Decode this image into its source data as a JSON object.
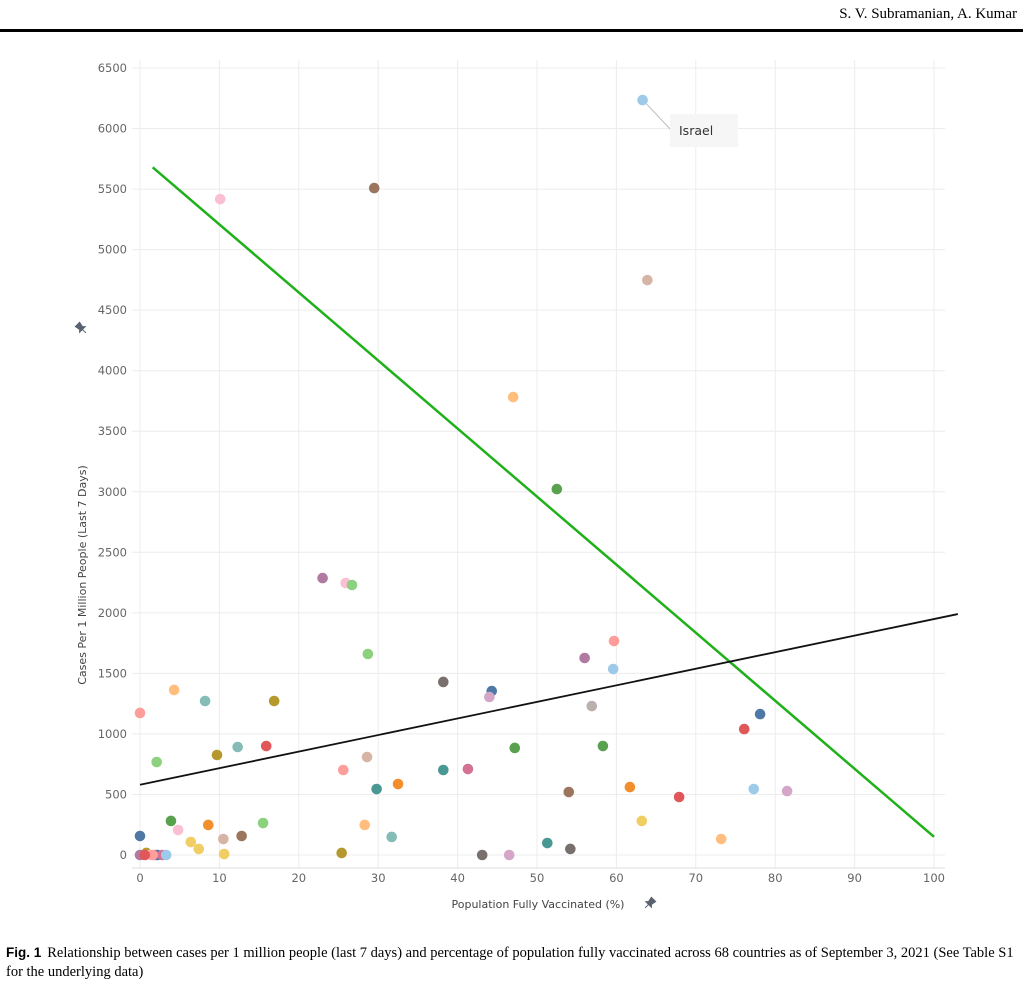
{
  "header": {
    "authors": "S. V. Subramanian, A. Kumar"
  },
  "caption": {
    "label": "Fig. 1",
    "text": "Relationship between cases per 1 million people (last 7 days) and percentage of population fully vaccinated across 68 countries as of September 3, 2021 (See Table S1 for the underlying data)"
  },
  "chart_data": {
    "type": "scatter",
    "title": "",
    "xlabel": "Population Fully Vaccinated (%)",
    "ylabel": "Cases Per 1 Million People (Last 7 Days)",
    "xlim": [
      0,
      100
    ],
    "ylim": [
      0,
      6500
    ],
    "xticks": [
      "0",
      "10",
      "20",
      "30",
      "40",
      "50",
      "60",
      "70",
      "80",
      "90",
      "100"
    ],
    "yticks": [
      "0",
      "500",
      "1000",
      "1500",
      "2000",
      "2500",
      "3000",
      "3500",
      "4000",
      "4500",
      "5000",
      "5500",
      "6000",
      "6500"
    ],
    "grid": true,
    "annotation": {
      "label": "Israel",
      "x": 63.3,
      "y": 6235
    },
    "lines": [
      {
        "name": "green-line",
        "color": "#1fb01a",
        "x": [
          1.6,
          100
        ],
        "y": [
          5680,
          150
        ]
      },
      {
        "name": "fit-line",
        "color": "#111111",
        "x": [
          0,
          103
        ],
        "y": [
          580,
          1990
        ]
      }
    ],
    "points": [
      {
        "x": 63.3,
        "y": 6235,
        "c": "#9ecae9"
      },
      {
        "x": 10.1,
        "y": 5417,
        "c": "#fabfd2"
      },
      {
        "x": 29.5,
        "y": 5508,
        "c": "#9c755f"
      },
      {
        "x": 63.9,
        "y": 4748,
        "c": "#d7b5a6"
      },
      {
        "x": 47.0,
        "y": 3782,
        "c": "#ffbe7d"
      },
      {
        "x": 52.5,
        "y": 3022,
        "c": "#59a14f"
      },
      {
        "x": 23.0,
        "y": 2287,
        "c": "#b07aa1"
      },
      {
        "x": 25.9,
        "y": 2246,
        "c": "#fabfd2"
      },
      {
        "x": 26.7,
        "y": 2230,
        "c": "#8cd17d"
      },
      {
        "x": 59.7,
        "y": 1767,
        "c": "#ff9d9a"
      },
      {
        "x": 28.7,
        "y": 1660,
        "c": "#8cd17d"
      },
      {
        "x": 56.0,
        "y": 1627,
        "c": "#b07aa1"
      },
      {
        "x": 59.6,
        "y": 1536,
        "c": "#9ecae9"
      },
      {
        "x": 38.2,
        "y": 1429,
        "c": "#79706e"
      },
      {
        "x": 44.3,
        "y": 1354,
        "c": "#4e79a7"
      },
      {
        "x": 44.0,
        "y": 1305,
        "c": "#d4a6c8"
      },
      {
        "x": 4.3,
        "y": 1363,
        "c": "#ffbe7d"
      },
      {
        "x": 8.2,
        "y": 1272,
        "c": "#86bcb6"
      },
      {
        "x": 16.9,
        "y": 1272,
        "c": "#b6992d"
      },
      {
        "x": 56.9,
        "y": 1230,
        "c": "#bab0ac"
      },
      {
        "x": 0.0,
        "y": 1173,
        "c": "#ff9d9a"
      },
      {
        "x": 78.1,
        "y": 1164,
        "c": "#4e79a7"
      },
      {
        "x": 76.1,
        "y": 1040,
        "c": "#e15759"
      },
      {
        "x": 47.2,
        "y": 884,
        "c": "#59a14f"
      },
      {
        "x": 58.3,
        "y": 900,
        "c": "#59a14f"
      },
      {
        "x": 12.3,
        "y": 892,
        "c": "#86bcb6"
      },
      {
        "x": 15.9,
        "y": 900,
        "c": "#e15759"
      },
      {
        "x": 9.7,
        "y": 826,
        "c": "#b6992d"
      },
      {
        "x": 2.1,
        "y": 768,
        "c": "#8cd17d"
      },
      {
        "x": 28.6,
        "y": 809,
        "c": "#d7b5a6"
      },
      {
        "x": 25.6,
        "y": 702,
        "c": "#ff9d9a"
      },
      {
        "x": 38.2,
        "y": 702,
        "c": "#499894"
      },
      {
        "x": 41.3,
        "y": 710,
        "c": "#d37295"
      },
      {
        "x": 32.5,
        "y": 586,
        "c": "#f28e2b"
      },
      {
        "x": 29.8,
        "y": 545,
        "c": "#499894"
      },
      {
        "x": 61.7,
        "y": 561,
        "c": "#f28e2b"
      },
      {
        "x": 77.3,
        "y": 545,
        "c": "#9ecae9"
      },
      {
        "x": 81.5,
        "y": 528,
        "c": "#d4a6c8"
      },
      {
        "x": 54.0,
        "y": 520,
        "c": "#9c755f"
      },
      {
        "x": 67.9,
        "y": 479,
        "c": "#e15759"
      },
      {
        "x": 3.9,
        "y": 281,
        "c": "#59a14f"
      },
      {
        "x": 15.5,
        "y": 264,
        "c": "#8cd17d"
      },
      {
        "x": 8.6,
        "y": 248,
        "c": "#f28e2b"
      },
      {
        "x": 4.8,
        "y": 206,
        "c": "#fabfd2"
      },
      {
        "x": 63.2,
        "y": 281,
        "c": "#f1ce63"
      },
      {
        "x": 28.3,
        "y": 248,
        "c": "#ffbe7d"
      },
      {
        "x": 12.8,
        "y": 157,
        "c": "#9c755f"
      },
      {
        "x": 10.5,
        "y": 132,
        "c": "#d7b5a6"
      },
      {
        "x": 31.7,
        "y": 149,
        "c": "#86bcb6"
      },
      {
        "x": 73.2,
        "y": 132,
        "c": "#ffbe7d"
      },
      {
        "x": 0.0,
        "y": 157,
        "c": "#4e79a7"
      },
      {
        "x": 6.4,
        "y": 107,
        "c": "#f1ce63"
      },
      {
        "x": 7.4,
        "y": 50,
        "c": "#f1ce63"
      },
      {
        "x": 51.3,
        "y": 99,
        "c": "#499894"
      },
      {
        "x": 54.2,
        "y": 50,
        "c": "#79706e"
      },
      {
        "x": 10.6,
        "y": 8,
        "c": "#f1ce63"
      },
      {
        "x": 0.8,
        "y": 17,
        "c": "#b6992d"
      },
      {
        "x": 25.4,
        "y": 17,
        "c": "#b6992d"
      },
      {
        "x": 43.1,
        "y": 0,
        "c": "#79706e"
      },
      {
        "x": 46.5,
        "y": 0,
        "c": "#d4a6c8"
      },
      {
        "x": 0.0,
        "y": 0,
        "c": "#b07aa1"
      },
      {
        "x": 1.3,
        "y": 0,
        "c": "#fabfd2"
      },
      {
        "x": 1.9,
        "y": 0,
        "c": "#bab0ac"
      },
      {
        "x": 2.2,
        "y": 0,
        "c": "#4e79a7"
      },
      {
        "x": 2.8,
        "y": 0,
        "c": "#d37295"
      },
      {
        "x": 3.3,
        "y": 0,
        "c": "#9ecae9"
      },
      {
        "x": 1.6,
        "y": 0,
        "c": "#ff9d9a"
      },
      {
        "x": 0.6,
        "y": 0,
        "c": "#e15759"
      }
    ]
  }
}
